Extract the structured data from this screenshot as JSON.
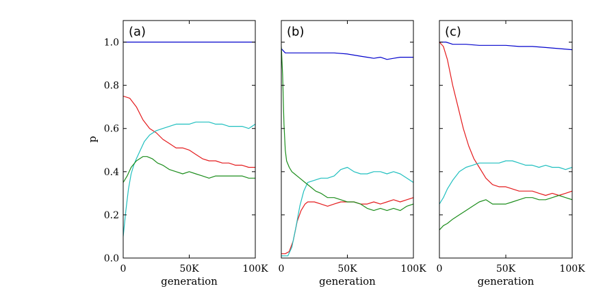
{
  "chart_data": [
    {
      "type": "line",
      "panel_label": "(a)",
      "xlabel": "generation",
      "ylabel": "p",
      "xlim": [
        0,
        100000
      ],
      "ylim": [
        0,
        1.1
      ],
      "x_ticks": [
        0,
        50000,
        100000
      ],
      "x_tick_labels": [
        "0",
        "50K",
        "100K"
      ],
      "y_ticks": [
        0,
        0.2,
        0.4,
        0.6,
        0.8,
        1.0
      ],
      "y_tick_labels": [
        "0.0",
        "0.2",
        "0.4",
        "0.6",
        "0.8",
        "1.0"
      ],
      "series": [
        {
          "name": "blue",
          "color": "#0000cc",
          "x": [
            0,
            100000
          ],
          "y": [
            1.0,
            1.0
          ]
        },
        {
          "name": "red",
          "color": "#e41a1c",
          "x": [
            0,
            5000,
            10000,
            15000,
            20000,
            25000,
            30000,
            35000,
            40000,
            45000,
            50000,
            55000,
            60000,
            65000,
            70000,
            75000,
            80000,
            85000,
            90000,
            95000,
            100000
          ],
          "y": [
            0.75,
            0.74,
            0.7,
            0.64,
            0.6,
            0.58,
            0.55,
            0.53,
            0.51,
            0.51,
            0.5,
            0.48,
            0.46,
            0.45,
            0.45,
            0.44,
            0.44,
            0.43,
            0.43,
            0.42,
            0.42
          ]
        },
        {
          "name": "cyan",
          "color": "#1fbfbf",
          "x": [
            0,
            2000,
            4000,
            6000,
            8000,
            10000,
            13000,
            16000,
            20000,
            25000,
            30000,
            35000,
            40000,
            45000,
            50000,
            55000,
            60000,
            65000,
            70000,
            75000,
            80000,
            85000,
            90000,
            95000,
            100000
          ],
          "y": [
            0.1,
            0.22,
            0.32,
            0.39,
            0.43,
            0.46,
            0.5,
            0.54,
            0.57,
            0.59,
            0.6,
            0.61,
            0.62,
            0.62,
            0.62,
            0.63,
            0.63,
            0.63,
            0.62,
            0.62,
            0.61,
            0.61,
            0.61,
            0.6,
            0.62
          ]
        },
        {
          "name": "green",
          "color": "#1a8c1a",
          "x": [
            0,
            3000,
            6000,
            10000,
            15000,
            18000,
            22000,
            26000,
            30000,
            35000,
            40000,
            45000,
            50000,
            55000,
            60000,
            65000,
            70000,
            75000,
            80000,
            85000,
            90000,
            95000,
            100000
          ],
          "y": [
            0.35,
            0.38,
            0.42,
            0.45,
            0.47,
            0.47,
            0.46,
            0.44,
            0.43,
            0.41,
            0.4,
            0.39,
            0.4,
            0.39,
            0.38,
            0.37,
            0.38,
            0.38,
            0.38,
            0.38,
            0.38,
            0.37,
            0.37
          ]
        }
      ]
    },
    {
      "type": "line",
      "panel_label": "(b)",
      "xlabel": "generation",
      "ylabel": "",
      "xlim": [
        0,
        100000
      ],
      "ylim": [
        0,
        1.1
      ],
      "x_ticks": [
        0,
        50000,
        100000
      ],
      "x_tick_labels": [
        "0",
        "50K",
        "100K"
      ],
      "y_ticks": [
        0,
        0.2,
        0.4,
        0.6,
        0.8,
        1.0
      ],
      "y_tick_labels": [],
      "series": [
        {
          "name": "blue",
          "color": "#0000cc",
          "x": [
            0,
            3000,
            10000,
            20000,
            30000,
            40000,
            50000,
            55000,
            60000,
            65000,
            70000,
            75000,
            80000,
            85000,
            90000,
            95000,
            100000
          ],
          "y": [
            0.97,
            0.95,
            0.95,
            0.95,
            0.95,
            0.95,
            0.945,
            0.94,
            0.935,
            0.93,
            0.925,
            0.93,
            0.92,
            0.925,
            0.93,
            0.93,
            0.93
          ]
        },
        {
          "name": "red",
          "color": "#e41a1c",
          "x": [
            0,
            3000,
            6000,
            9000,
            12000,
            15000,
            18000,
            20000,
            25000,
            30000,
            35000,
            40000,
            45000,
            50000,
            55000,
            60000,
            65000,
            70000,
            75000,
            80000,
            85000,
            90000,
            95000,
            100000
          ],
          "y": [
            0.02,
            0.02,
            0.03,
            0.08,
            0.17,
            0.22,
            0.25,
            0.26,
            0.26,
            0.25,
            0.24,
            0.25,
            0.26,
            0.26,
            0.26,
            0.25,
            0.25,
            0.26,
            0.25,
            0.26,
            0.27,
            0.26,
            0.27,
            0.28
          ]
        },
        {
          "name": "cyan",
          "color": "#1fbfbf",
          "x": [
            0,
            5000,
            8000,
            11000,
            14000,
            17000,
            20000,
            25000,
            30000,
            35000,
            40000,
            45000,
            50000,
            55000,
            60000,
            65000,
            70000,
            75000,
            80000,
            85000,
            90000,
            95000,
            100000
          ],
          "y": [
            0.01,
            0.01,
            0.05,
            0.14,
            0.24,
            0.31,
            0.35,
            0.36,
            0.37,
            0.37,
            0.38,
            0.41,
            0.42,
            0.4,
            0.39,
            0.39,
            0.4,
            0.4,
            0.39,
            0.4,
            0.39,
            0.37,
            0.35
          ]
        },
        {
          "name": "green",
          "color": "#1a8c1a",
          "x": [
            0,
            1000,
            2000,
            3000,
            4000,
            6000,
            8000,
            10000,
            14000,
            18000,
            22000,
            26000,
            30000,
            35000,
            40000,
            45000,
            50000,
            55000,
            60000,
            65000,
            70000,
            75000,
            80000,
            85000,
            90000,
            95000,
            100000
          ],
          "y": [
            0.98,
            0.85,
            0.62,
            0.5,
            0.45,
            0.42,
            0.4,
            0.39,
            0.37,
            0.35,
            0.33,
            0.31,
            0.3,
            0.28,
            0.28,
            0.27,
            0.26,
            0.26,
            0.25,
            0.23,
            0.22,
            0.23,
            0.22,
            0.23,
            0.22,
            0.24,
            0.25
          ]
        }
      ]
    },
    {
      "type": "line",
      "panel_label": "(c)",
      "xlabel": "generation",
      "ylabel": "",
      "xlim": [
        0,
        100000
      ],
      "ylim": [
        0,
        1.1
      ],
      "x_ticks": [
        0,
        50000,
        100000
      ],
      "x_tick_labels": [
        "0",
        "50K",
        "100K"
      ],
      "y_ticks": [
        0,
        0.2,
        0.4,
        0.6,
        0.8,
        1.0
      ],
      "y_tick_labels": [],
      "series": [
        {
          "name": "blue",
          "color": "#0000cc",
          "x": [
            0,
            5000,
            10000,
            20000,
            30000,
            40000,
            50000,
            60000,
            70000,
            80000,
            90000,
            100000
          ],
          "y": [
            1.0,
            1.0,
            0.99,
            0.99,
            0.985,
            0.985,
            0.985,
            0.98,
            0.98,
            0.975,
            0.97,
            0.965
          ]
        },
        {
          "name": "red",
          "color": "#e41a1c",
          "x": [
            0,
            3000,
            6000,
            10000,
            14000,
            18000,
            22000,
            26000,
            30000,
            35000,
            40000,
            45000,
            50000,
            55000,
            60000,
            65000,
            70000,
            75000,
            80000,
            85000,
            90000,
            95000,
            100000
          ],
          "y": [
            1.0,
            0.98,
            0.92,
            0.8,
            0.7,
            0.6,
            0.52,
            0.46,
            0.42,
            0.37,
            0.34,
            0.33,
            0.33,
            0.32,
            0.31,
            0.31,
            0.31,
            0.3,
            0.29,
            0.3,
            0.29,
            0.3,
            0.31
          ]
        },
        {
          "name": "cyan",
          "color": "#1fbfbf",
          "x": [
            0,
            3000,
            6000,
            10000,
            15000,
            20000,
            25000,
            30000,
            35000,
            40000,
            45000,
            50000,
            55000,
            60000,
            65000,
            70000,
            75000,
            80000,
            85000,
            90000,
            95000,
            100000
          ],
          "y": [
            0.25,
            0.28,
            0.32,
            0.36,
            0.4,
            0.42,
            0.43,
            0.44,
            0.44,
            0.44,
            0.44,
            0.45,
            0.45,
            0.44,
            0.43,
            0.43,
            0.42,
            0.43,
            0.42,
            0.42,
            0.41,
            0.42
          ]
        },
        {
          "name": "green",
          "color": "#1a8c1a",
          "x": [
            0,
            3000,
            6000,
            10000,
            15000,
            20000,
            25000,
            30000,
            35000,
            40000,
            45000,
            50000,
            55000,
            60000,
            65000,
            70000,
            75000,
            80000,
            85000,
            90000,
            95000,
            100000
          ],
          "y": [
            0.13,
            0.15,
            0.16,
            0.18,
            0.2,
            0.22,
            0.24,
            0.26,
            0.27,
            0.25,
            0.25,
            0.25,
            0.26,
            0.27,
            0.28,
            0.28,
            0.27,
            0.27,
            0.28,
            0.29,
            0.28,
            0.27
          ]
        }
      ]
    }
  ]
}
